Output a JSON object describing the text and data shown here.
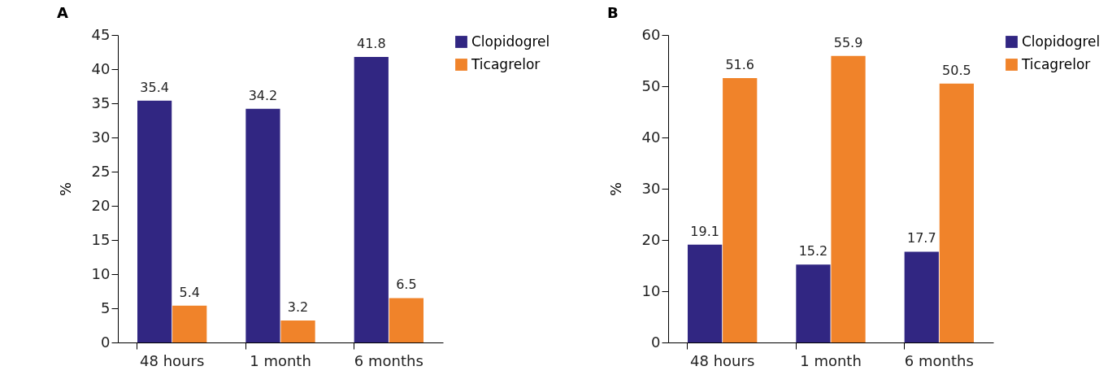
{
  "chart_data": [
    {
      "type": "bar",
      "title": "A",
      "categories": [
        "48 hours",
        "1 month",
        "6 months"
      ],
      "ylabel": "%",
      "ylim": [
        0,
        45
      ],
      "yticks": [
        0,
        5,
        10,
        15,
        20,
        25,
        30,
        35,
        40,
        45
      ],
      "legend": "right",
      "data_labels": true,
      "series": [
        {
          "name": "Clopidogrel",
          "color": "#312682",
          "values": [
            35.4,
            34.2,
            41.8
          ]
        },
        {
          "name": "Ticagrelor",
          "color": "#f0832a",
          "values": [
            5.4,
            3.2,
            6.5
          ]
        }
      ]
    },
    {
      "type": "bar",
      "title": "B",
      "categories": [
        "48 hours",
        "1 month",
        "6 months"
      ],
      "ylabel": "%",
      "ylim": [
        0,
        60
      ],
      "yticks": [
        0,
        10,
        20,
        30,
        40,
        50,
        60
      ],
      "legend": "right",
      "data_labels": true,
      "series": [
        {
          "name": "Clopidogrel",
          "color": "#312682",
          "values": [
            19.1,
            15.2,
            17.7
          ]
        },
        {
          "name": "Ticagrelor",
          "color": "#f0832a",
          "values": [
            51.6,
            55.9,
            50.5
          ]
        }
      ]
    }
  ]
}
